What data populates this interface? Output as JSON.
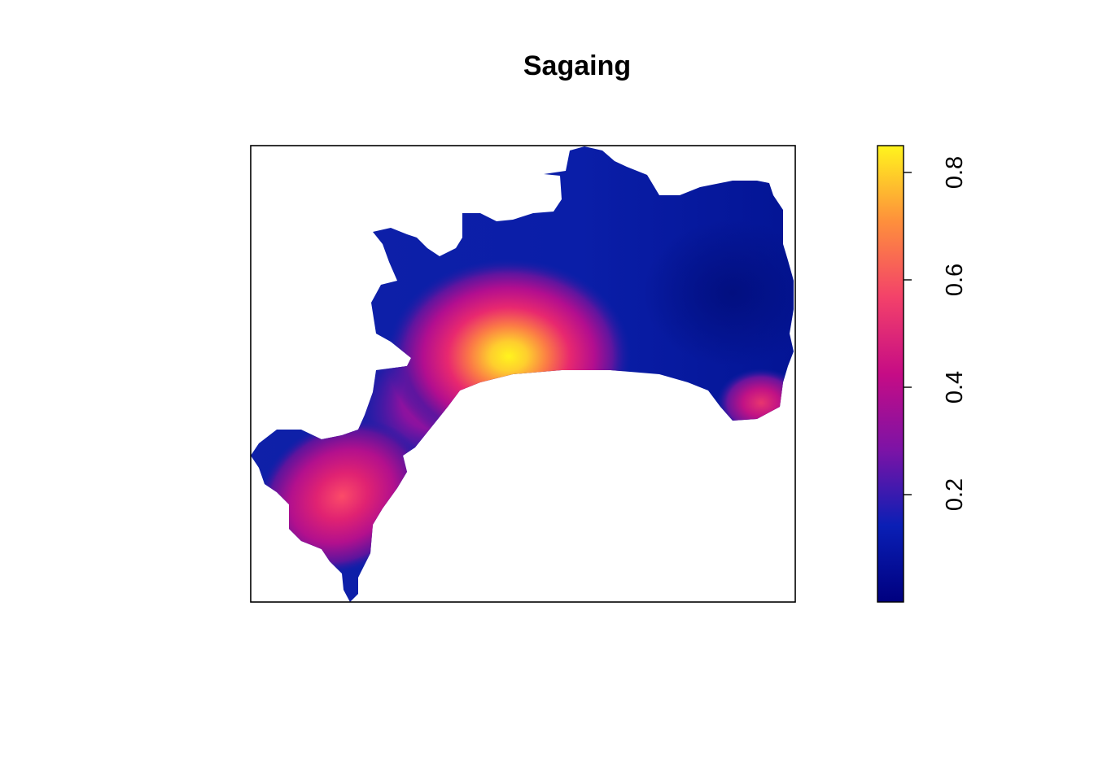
{
  "map": {
    "title": "Sagaing",
    "legend": {
      "ticks": [
        {
          "value": 0.2,
          "label": "0.2"
        },
        {
          "value": 0.4,
          "label": "0.4"
        },
        {
          "value": 0.6,
          "label": "0.6"
        },
        {
          "value": 0.8,
          "label": "0.8"
        }
      ],
      "range": [
        0.0,
        0.85
      ],
      "colors": [
        "#00007f",
        "#0a1fb5",
        "#7c13a6",
        "#c60c85",
        "#f3416a",
        "#fe8f3c",
        "#fff41d"
      ]
    },
    "hotspots": [
      {
        "name": "central",
        "value": 0.85
      },
      {
        "name": "southwest",
        "value": 0.55
      },
      {
        "name": "east",
        "value": 0.42
      }
    ]
  }
}
